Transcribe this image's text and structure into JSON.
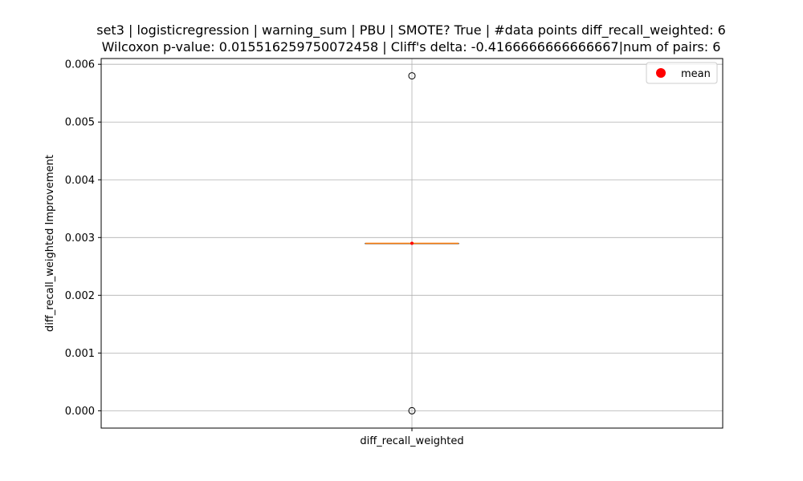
{
  "chart_data": {
    "type": "box",
    "title_lines": [
      "set3 | logisticregression | warning_sum | PBU | SMOTE? True | #data points diff_recall_weighted: 6",
      "Wilcoxon p-value: 0.015516259750072458 | Cliff's delta: -0.4166666666666667|num of pairs: 6"
    ],
    "xlabel": "",
    "ylabel": "diff_recall_weighted Improvement",
    "categories": [
      "diff_recall_weighted"
    ],
    "ylim": [
      -0.0003,
      0.0061
    ],
    "yticks": [
      0.0,
      0.001,
      0.002,
      0.003,
      0.004,
      0.005,
      0.006
    ],
    "ytick_labels": [
      "0.000",
      "0.001",
      "0.002",
      "0.003",
      "0.004",
      "0.005",
      "0.006"
    ],
    "grid": true,
    "legend": {
      "position": "top-right",
      "entries": [
        {
          "label": "mean",
          "color": "#ff0000"
        }
      ]
    },
    "box": {
      "q1": 0.0029,
      "median": 0.0029,
      "q3": 0.0029,
      "whisker_low": 0.0029,
      "whisker_high": 0.0029,
      "mean": 0.0029,
      "outliers": [
        0.0058,
        0.0
      ]
    },
    "colors": {
      "median": "#ff7f0e",
      "mean": "#ff0000",
      "box": "#000000",
      "grid": "#b0b0b0"
    }
  }
}
